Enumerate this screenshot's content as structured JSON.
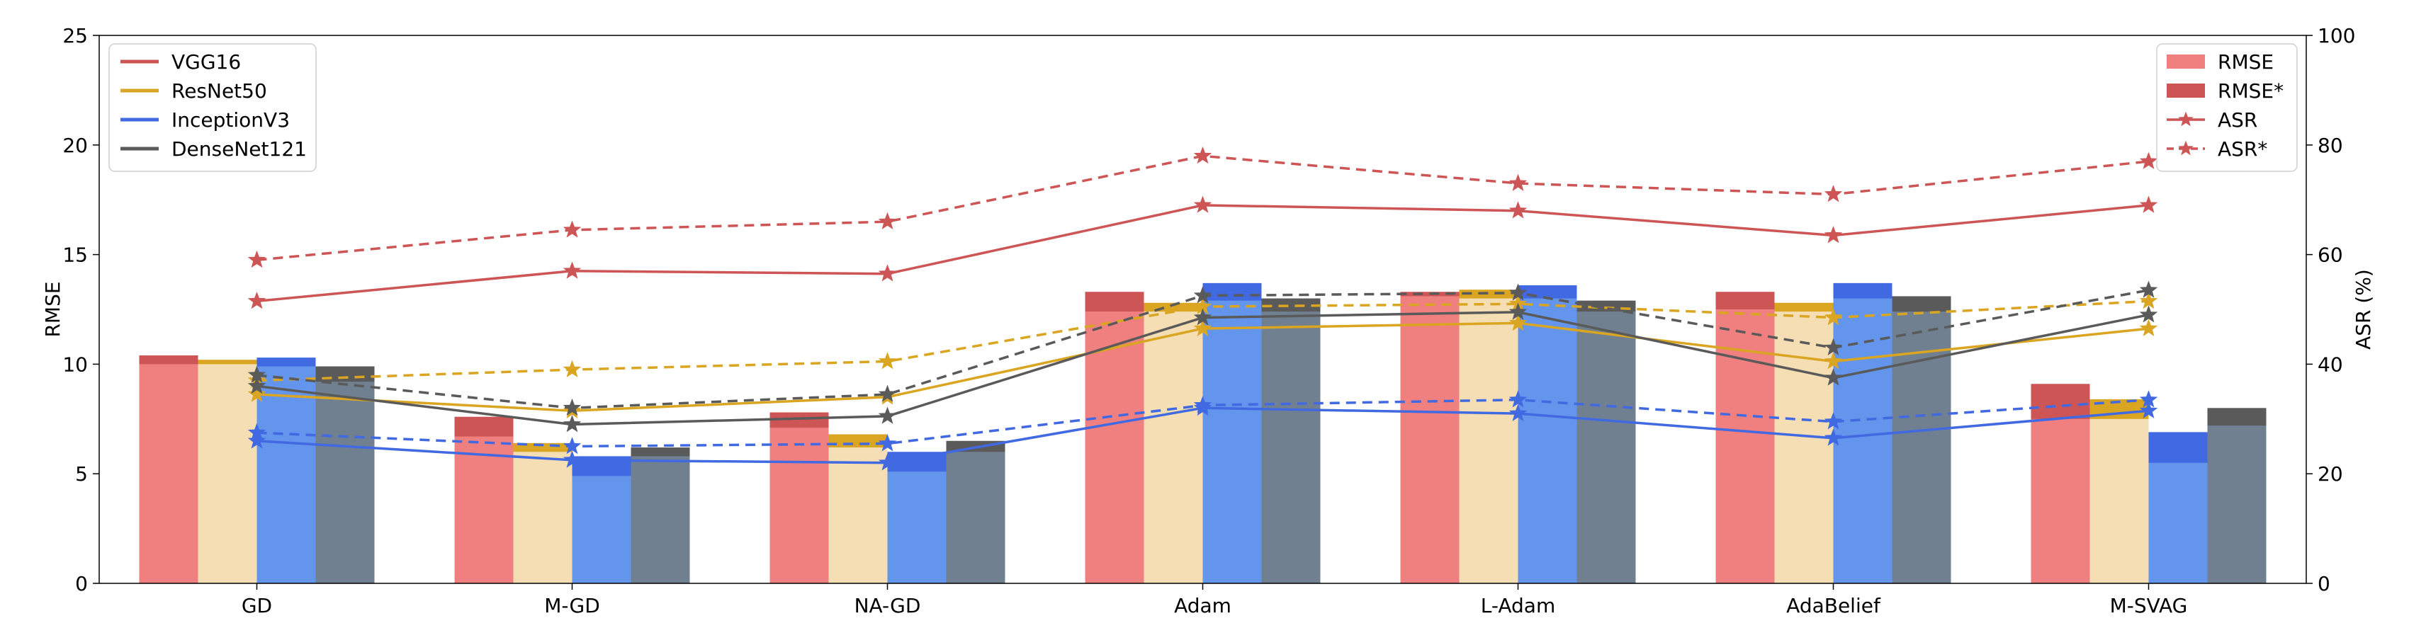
{
  "chart_data": {
    "type": "bar",
    "categories": [
      "GD",
      "M-GD",
      "NA-GD",
      "Adam",
      "L-Adam",
      "AdaBelief",
      "M-SVAG"
    ],
    "ylabel": "RMSE",
    "y2label": "ASR (%)",
    "ylim": [
      0,
      25
    ],
    "y2lim": [
      0,
      100
    ],
    "yticks": [
      "0",
      "5",
      "10",
      "15",
      "20",
      "25"
    ],
    "y2ticks": [
      "0",
      "20",
      "40",
      "60",
      "80",
      "100"
    ],
    "grid": false,
    "models": [
      {
        "name": "VGG16",
        "color": "#cd5555",
        "light_color": "#f08080",
        "rmse": [
          10.0,
          6.7,
          7.1,
          12.4,
          13.1,
          12.5,
          7.5
        ],
        "rmse_star": [
          10.4,
          7.6,
          7.8,
          13.3,
          13.3,
          13.3,
          9.1
        ],
        "asr": [
          51.5,
          57.0,
          56.5,
          69.0,
          68.0,
          63.5,
          69.0
        ],
        "asr_star": [
          59.0,
          64.5,
          66.0,
          78.0,
          73.0,
          71.0,
          77.0
        ]
      },
      {
        "name": "ResNet50",
        "color": "#daa520",
        "light_color": "#f5deb3",
        "rmse": [
          10.0,
          6.0,
          6.2,
          12.4,
          13.0,
          12.4,
          7.5
        ],
        "rmse_star": [
          10.2,
          6.4,
          6.8,
          12.8,
          13.4,
          12.8,
          8.4
        ],
        "asr": [
          34.5,
          31.5,
          34.0,
          46.5,
          47.5,
          40.5,
          46.5
        ],
        "asr_star": [
          37.0,
          39.0,
          40.5,
          50.5,
          51.0,
          48.5,
          51.5
        ]
      },
      {
        "name": "InceptionV3",
        "color": "#4169e1",
        "light_color": "#6495ed",
        "rmse": [
          9.9,
          4.9,
          5.1,
          12.9,
          13.0,
          13.0,
          5.5
        ],
        "rmse_star": [
          10.3,
          5.8,
          6.0,
          13.7,
          13.6,
          13.7,
          6.9
        ],
        "asr": [
          26.0,
          22.5,
          22.0,
          32.0,
          31.0,
          26.5,
          31.5
        ],
        "asr_star": [
          27.5,
          25.0,
          25.5,
          32.5,
          33.5,
          29.5,
          33.5
        ]
      },
      {
        "name": "DenseNet121",
        "color": "#5a5a5a",
        "light_color": "#708090",
        "rmse": [
          9.2,
          5.8,
          6.0,
          12.4,
          12.4,
          12.4,
          7.2
        ],
        "rmse_star": [
          9.9,
          6.2,
          6.5,
          13.0,
          12.9,
          13.1,
          8.0
        ],
        "asr": [
          36.0,
          29.0,
          30.5,
          48.5,
          49.5,
          37.5,
          49.0
        ],
        "asr_star": [
          38.0,
          32.0,
          34.5,
          52.5,
          53.0,
          43.0,
          53.5
        ]
      }
    ],
    "legend_models": {
      "placement": "top-left",
      "entries": [
        "VGG16",
        "ResNet50",
        "InceptionV3",
        "DenseNet121"
      ]
    },
    "legend_types": {
      "placement": "top-right",
      "entries": [
        "RMSE",
        "RMSE*",
        "ASR",
        "ASR*"
      ]
    }
  }
}
